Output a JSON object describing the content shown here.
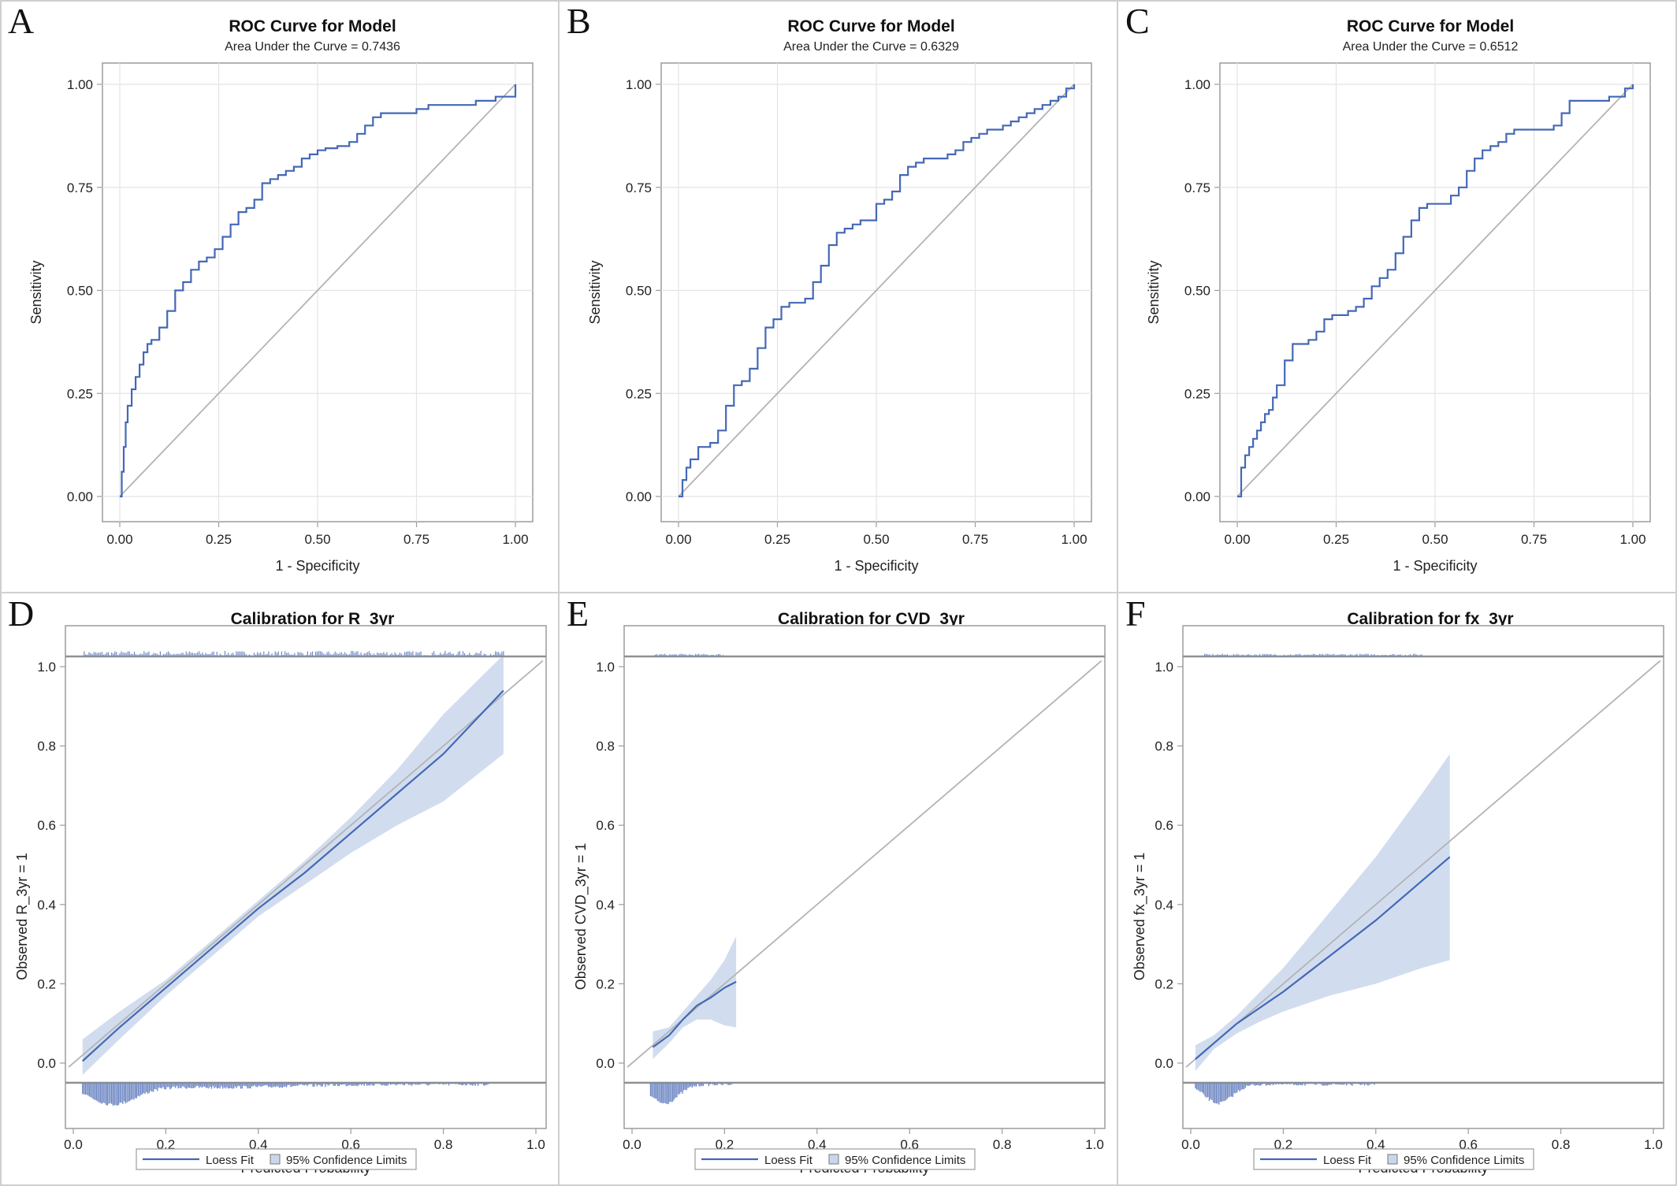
{
  "panels": [
    {
      "letter": "A",
      "kind": "roc",
      "title": "ROC Curve for Model",
      "subtitle": "Area Under the Curve = 0.7436"
    },
    {
      "letter": "B",
      "kind": "roc",
      "title": "ROC Curve for Model",
      "subtitle": "Area Under the Curve = 0.6329"
    },
    {
      "letter": "C",
      "kind": "roc",
      "title": "ROC Curve for Model",
      "subtitle": "Area Under the Curve = 0.6512"
    },
    {
      "letter": "D",
      "kind": "calibration",
      "title": "Calibration for R_3yr"
    },
    {
      "letter": "E",
      "kind": "calibration",
      "title": "Calibration for CVD_3yr"
    },
    {
      "letter": "F",
      "kind": "calibration",
      "title": "Calibration for fx_3yr"
    }
  ],
  "colors": {
    "curve": "#4468b6",
    "band": "#c9d7ec",
    "diagonal": "#b3b3b3",
    "grid": "#e4e4e4",
    "frame": "#9c9c9c",
    "hist": "#6f88c4",
    "rule": "#909090"
  },
  "chart_data": [
    {
      "type": "line",
      "panel": "A",
      "title": "ROC Curve for Model",
      "subtitle": "Area Under the Curve = 0.7436",
      "xlabel": "1 - Specificity",
      "ylabel": "Sensitivity",
      "xlim": [
        0,
        1
      ],
      "ylim": [
        0,
        1
      ],
      "xticks": [
        "0.00",
        "0.25",
        "0.50",
        "0.75",
        "1.00"
      ],
      "yticks": [
        "0.00",
        "0.25",
        "0.50",
        "0.75",
        "1.00"
      ],
      "grid": true,
      "series": [
        {
          "x": [
            0,
            0.005,
            0.01,
            0.015,
            0.02,
            0.03,
            0.04,
            0.05,
            0.06,
            0.07,
            0.08,
            0.1,
            0.12,
            0.14,
            0.16,
            0.18,
            0.2,
            0.22,
            0.24,
            0.26,
            0.28,
            0.3,
            0.32,
            0.34,
            0.36,
            0.38,
            0.4,
            0.42,
            0.44,
            0.46,
            0.48,
            0.5,
            0.52,
            0.55,
            0.58,
            0.6,
            0.62,
            0.64,
            0.66,
            0.68,
            0.7,
            0.72,
            0.75,
            0.78,
            0.8,
            0.85,
            0.9,
            0.95,
            1.0
          ],
          "y": [
            0,
            0.06,
            0.12,
            0.18,
            0.22,
            0.26,
            0.29,
            0.32,
            0.35,
            0.37,
            0.38,
            0.41,
            0.45,
            0.5,
            0.52,
            0.55,
            0.57,
            0.58,
            0.6,
            0.63,
            0.66,
            0.69,
            0.7,
            0.72,
            0.76,
            0.77,
            0.78,
            0.79,
            0.8,
            0.82,
            0.83,
            0.84,
            0.845,
            0.85,
            0.86,
            0.88,
            0.9,
            0.92,
            0.93,
            0.93,
            0.93,
            0.93,
            0.94,
            0.95,
            0.95,
            0.95,
            0.96,
            0.97,
            1.0
          ]
        }
      ],
      "reference_line": [
        [
          0,
          0
        ],
        [
          1,
          1
        ]
      ]
    },
    {
      "type": "line",
      "panel": "B",
      "title": "ROC Curve for Model",
      "subtitle": "Area Under the Curve = 0.6329",
      "xlabel": "1 - Specificity",
      "ylabel": "Sensitivity",
      "xlim": [
        0,
        1
      ],
      "ylim": [
        0,
        1
      ],
      "xticks": [
        "0.00",
        "0.25",
        "0.50",
        "0.75",
        "1.00"
      ],
      "yticks": [
        "0.00",
        "0.25",
        "0.50",
        "0.75",
        "1.00"
      ],
      "grid": true,
      "series": [
        {
          "x": [
            0,
            0.01,
            0.02,
            0.03,
            0.05,
            0.08,
            0.1,
            0.12,
            0.14,
            0.16,
            0.18,
            0.2,
            0.22,
            0.24,
            0.26,
            0.28,
            0.3,
            0.32,
            0.34,
            0.36,
            0.38,
            0.4,
            0.42,
            0.44,
            0.46,
            0.48,
            0.5,
            0.52,
            0.54,
            0.56,
            0.58,
            0.6,
            0.62,
            0.64,
            0.66,
            0.68,
            0.7,
            0.72,
            0.74,
            0.76,
            0.78,
            0.8,
            0.82,
            0.84,
            0.86,
            0.88,
            0.9,
            0.92,
            0.94,
            0.96,
            0.98,
            1.0
          ],
          "y": [
            0,
            0.04,
            0.07,
            0.09,
            0.12,
            0.13,
            0.16,
            0.22,
            0.27,
            0.28,
            0.31,
            0.36,
            0.41,
            0.43,
            0.46,
            0.47,
            0.47,
            0.48,
            0.52,
            0.56,
            0.61,
            0.64,
            0.65,
            0.66,
            0.67,
            0.67,
            0.71,
            0.72,
            0.74,
            0.78,
            0.8,
            0.81,
            0.82,
            0.82,
            0.82,
            0.83,
            0.84,
            0.86,
            0.87,
            0.88,
            0.89,
            0.89,
            0.9,
            0.91,
            0.92,
            0.93,
            0.94,
            0.95,
            0.96,
            0.97,
            0.99,
            1.0
          ]
        }
      ],
      "reference_line": [
        [
          0,
          0
        ],
        [
          1,
          1
        ]
      ]
    },
    {
      "type": "line",
      "panel": "C",
      "title": "ROC Curve for Model",
      "subtitle": "Area Under the Curve = 0.6512",
      "xlabel": "1 - Specificity",
      "ylabel": "Sensitivity",
      "xlim": [
        0,
        1
      ],
      "ylim": [
        0,
        1
      ],
      "xticks": [
        "0.00",
        "0.25",
        "0.50",
        "0.75",
        "1.00"
      ],
      "yticks": [
        "0.00",
        "0.25",
        "0.50",
        "0.75",
        "1.00"
      ],
      "grid": true,
      "series": [
        {
          "x": [
            0,
            0.01,
            0.02,
            0.03,
            0.04,
            0.05,
            0.06,
            0.07,
            0.08,
            0.09,
            0.1,
            0.12,
            0.14,
            0.16,
            0.18,
            0.2,
            0.22,
            0.24,
            0.26,
            0.28,
            0.3,
            0.32,
            0.34,
            0.36,
            0.38,
            0.4,
            0.42,
            0.44,
            0.46,
            0.48,
            0.5,
            0.52,
            0.54,
            0.56,
            0.58,
            0.6,
            0.62,
            0.64,
            0.66,
            0.68,
            0.7,
            0.72,
            0.74,
            0.76,
            0.78,
            0.8,
            0.82,
            0.84,
            0.86,
            0.88,
            0.9,
            0.92,
            0.94,
            0.96,
            0.98,
            1.0
          ],
          "y": [
            0,
            0.07,
            0.1,
            0.12,
            0.14,
            0.16,
            0.18,
            0.2,
            0.21,
            0.24,
            0.27,
            0.33,
            0.37,
            0.37,
            0.38,
            0.4,
            0.43,
            0.44,
            0.44,
            0.45,
            0.46,
            0.48,
            0.51,
            0.53,
            0.55,
            0.59,
            0.63,
            0.67,
            0.7,
            0.71,
            0.71,
            0.71,
            0.73,
            0.75,
            0.79,
            0.82,
            0.84,
            0.85,
            0.86,
            0.88,
            0.89,
            0.89,
            0.89,
            0.89,
            0.89,
            0.9,
            0.93,
            0.96,
            0.96,
            0.96,
            0.96,
            0.96,
            0.97,
            0.97,
            0.99,
            1.0
          ]
        }
      ],
      "reference_line": [
        [
          0,
          0
        ],
        [
          1,
          1
        ]
      ]
    },
    {
      "type": "line",
      "panel": "D",
      "title": "Calibration for R_3yr",
      "xlabel": "Predicted Probability",
      "ylabel": "Observed R_3yr = 1",
      "xlim": [
        0,
        1
      ],
      "ylim": [
        -0.03,
        1.03
      ],
      "xticks": [
        "0.0",
        "0.2",
        "0.4",
        "0.6",
        "0.8",
        "1.0"
      ],
      "yticks": [
        "0.0",
        "0.2",
        "0.4",
        "0.6",
        "0.8",
        "1.0"
      ],
      "grid": false,
      "legend": [
        "Loess Fit",
        "95% Confidence Limits"
      ],
      "legend_position": "bottom",
      "series": [
        {
          "name": "Loess Fit",
          "x": [
            0.02,
            0.1,
            0.2,
            0.3,
            0.4,
            0.5,
            0.6,
            0.7,
            0.8,
            0.93
          ],
          "y": [
            0.005,
            0.09,
            0.19,
            0.29,
            0.39,
            0.48,
            0.58,
            0.68,
            0.78,
            0.94
          ]
        }
      ],
      "band": {
        "name": "95% Confidence Limits",
        "x": [
          0.02,
          0.1,
          0.2,
          0.3,
          0.4,
          0.5,
          0.6,
          0.7,
          0.8,
          0.93
        ],
        "lower": [
          -0.03,
          0.06,
          0.17,
          0.27,
          0.37,
          0.45,
          0.53,
          0.6,
          0.66,
          0.78
        ],
        "upper": [
          0.06,
          0.13,
          0.21,
          0.31,
          0.41,
          0.51,
          0.62,
          0.74,
          0.88,
          1.03
        ]
      },
      "reference_line": [
        [
          0,
          0
        ],
        [
          1,
          1
        ]
      ],
      "event_rug_range": [
        0.02,
        0.93
      ],
      "nonevent_hist_range": [
        0.02,
        0.9
      ]
    },
    {
      "type": "line",
      "panel": "E",
      "title": "Calibration for CVD_3yr",
      "xlabel": "Predicted Probability",
      "ylabel": "Observed CVD_3yr = 1",
      "xlim": [
        0,
        1
      ],
      "ylim": [
        -0.03,
        1.03
      ],
      "xticks": [
        "0.0",
        "0.2",
        "0.4",
        "0.6",
        "0.8",
        "1.0"
      ],
      "yticks": [
        "0.0",
        "0.2",
        "0.4",
        "0.6",
        "0.8",
        "1.0"
      ],
      "grid": false,
      "legend": [
        "Loess Fit",
        "95% Confidence Limits"
      ],
      "legend_position": "bottom",
      "series": [
        {
          "name": "Loess Fit",
          "x": [
            0.045,
            0.08,
            0.11,
            0.14,
            0.17,
            0.2,
            0.225
          ],
          "y": [
            0.04,
            0.07,
            0.11,
            0.145,
            0.165,
            0.19,
            0.205
          ]
        }
      ],
      "band": {
        "name": "95% Confidence Limits",
        "x": [
          0.045,
          0.08,
          0.11,
          0.14,
          0.17,
          0.2,
          0.225
        ],
        "lower": [
          0.01,
          0.05,
          0.09,
          0.11,
          0.11,
          0.095,
          0.09
        ],
        "upper": [
          0.08,
          0.09,
          0.13,
          0.17,
          0.21,
          0.26,
          0.32
        ]
      },
      "reference_line": [
        [
          0,
          0
        ],
        [
          1,
          1
        ]
      ],
      "event_rug_range": [
        0.05,
        0.2
      ],
      "nonevent_hist_range": [
        0.04,
        0.22
      ]
    },
    {
      "type": "line",
      "panel": "F",
      "title": "Calibration for fx_3yr",
      "xlabel": "Predicted Probability",
      "ylabel": "Observed fx_3yr = 1",
      "xlim": [
        0,
        1
      ],
      "ylim": [
        -0.03,
        1.03
      ],
      "xticks": [
        "0.0",
        "0.2",
        "0.4",
        "0.6",
        "0.8",
        "1.0"
      ],
      "yticks": [
        "0.0",
        "0.2",
        "0.4",
        "0.6",
        "0.8",
        "1.0"
      ],
      "grid": false,
      "legend": [
        "Loess Fit",
        "95% Confidence Limits"
      ],
      "legend_position": "bottom",
      "series": [
        {
          "name": "Loess Fit",
          "x": [
            0.01,
            0.05,
            0.1,
            0.15,
            0.2,
            0.3,
            0.4,
            0.5,
            0.56
          ],
          "y": [
            0.01,
            0.05,
            0.1,
            0.14,
            0.18,
            0.27,
            0.36,
            0.46,
            0.52
          ]
        }
      ],
      "band": {
        "name": "95% Confidence Limits",
        "x": [
          0.01,
          0.05,
          0.1,
          0.15,
          0.2,
          0.3,
          0.4,
          0.5,
          0.56
        ],
        "lower": [
          -0.02,
          0.035,
          0.075,
          0.105,
          0.13,
          0.17,
          0.2,
          0.24,
          0.26
        ],
        "upper": [
          0.045,
          0.07,
          0.12,
          0.18,
          0.24,
          0.38,
          0.52,
          0.68,
          0.78
        ]
      },
      "reference_line": [
        [
          0,
          0
        ],
        [
          1,
          1
        ]
      ],
      "event_rug_range": [
        0.03,
        0.5
      ],
      "nonevent_hist_range": [
        0.01,
        0.4
      ]
    }
  ]
}
